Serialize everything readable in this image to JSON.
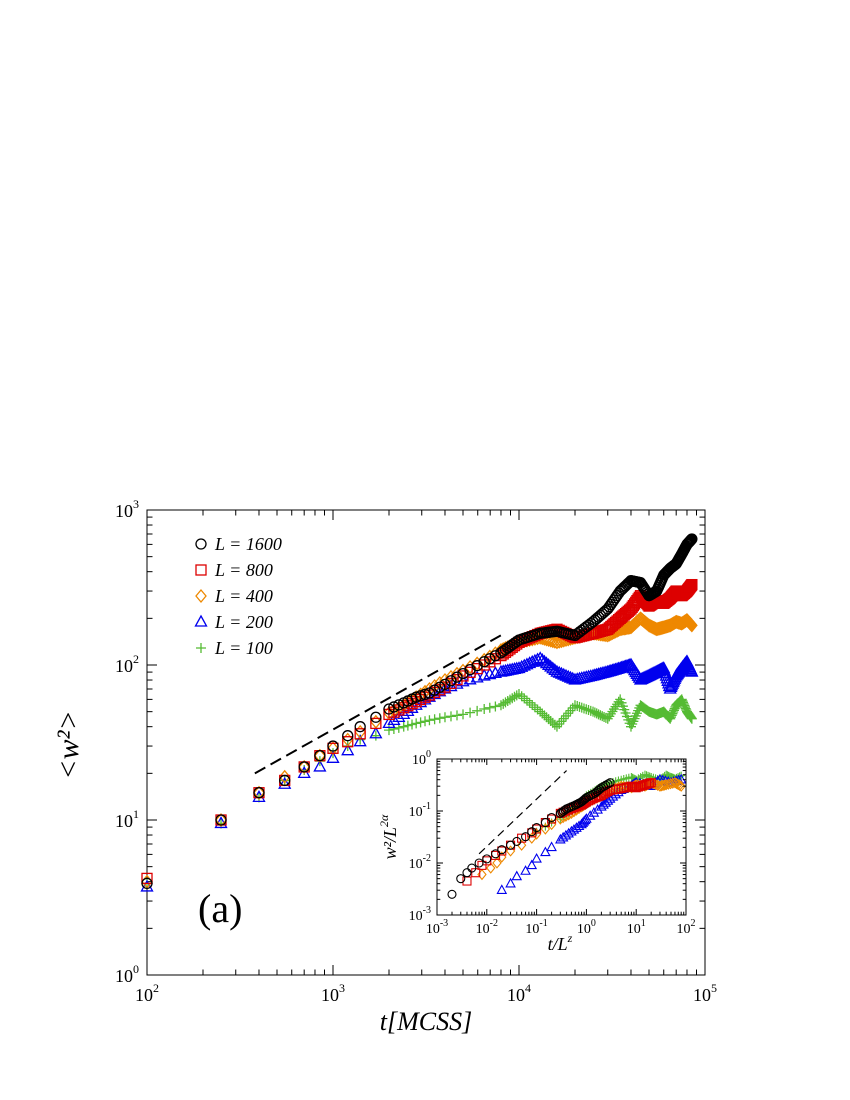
{
  "chart_data": [
    {
      "type": "scatter",
      "scale": "log-log",
      "xlabel": "t[MCSS]",
      "ylabel": "<w²>",
      "xlim": [
        100,
        100000
      ],
      "ylim": [
        1,
        1000
      ],
      "x_ticks": [
        {
          "base": "10",
          "exp": "2"
        },
        {
          "base": "10",
          "exp": "3"
        },
        {
          "base": "10",
          "exp": "4"
        },
        {
          "base": "10",
          "exp": "5"
        }
      ],
      "y_ticks": [
        {
          "base": "10",
          "exp": "0"
        },
        {
          "base": "10",
          "exp": "1"
        },
        {
          "base": "10",
          "exp": "2"
        },
        {
          "base": "10",
          "exp": "3"
        }
      ],
      "panel_label": "(a)",
      "legend_position": "top-left",
      "reference_line": {
        "style": "dashed",
        "x": [
          380,
          8200
        ],
        "y": [
          20,
          158
        ]
      },
      "series": [
        {
          "name": "L = 1600",
          "marker": "circle",
          "color": "#000000",
          "x": [
            100,
            250,
            400,
            550,
            700,
            850,
            1000,
            1200,
            1400,
            1700,
            2000,
            2400,
            2800,
            3300,
            4000,
            5000,
            6500,
            8000,
            10000,
            13000,
            16000,
            20000,
            25000,
            30000,
            35000,
            40000,
            45000,
            50000,
            55000,
            60000,
            65000,
            70000,
            75000,
            80000,
            85000
          ],
          "y": [
            3.9,
            10,
            15,
            18,
            22,
            26,
            30,
            35,
            40,
            46,
            52,
            57,
            62,
            66,
            75,
            88,
            105,
            120,
            145,
            160,
            165,
            155,
            190,
            230,
            300,
            350,
            340,
            280,
            300,
            380,
            420,
            450,
            520,
            600,
            650
          ]
        },
        {
          "name": "L = 800",
          "marker": "square",
          "color": "#dd0000",
          "x": [
            100,
            250,
            400,
            550,
            700,
            850,
            1000,
            1200,
            1400,
            1700,
            2000,
            2400,
            2800,
            3300,
            4000,
            5000,
            6500,
            8000,
            10000,
            13000,
            16000,
            20000,
            25000,
            30000,
            35000,
            40000,
            45000,
            50000,
            55000,
            60000,
            65000,
            70000,
            75000,
            80000,
            85000
          ],
          "y": [
            4.2,
            10,
            15,
            18,
            22,
            26,
            29,
            32,
            36,
            42,
            48,
            53,
            58,
            64,
            72,
            85,
            100,
            115,
            140,
            160,
            170,
            150,
            160,
            170,
            200,
            230,
            280,
            240,
            260,
            250,
            270,
            300,
            280,
            300,
            330
          ]
        },
        {
          "name": "L = 400",
          "marker": "diamond",
          "color": "#ee8800",
          "x": [
            100,
            250,
            400,
            550,
            700,
            850,
            1000,
            1200,
            1400,
            1700,
            2000,
            2400,
            2800,
            3300,
            4000,
            5000,
            6500,
            8000,
            10000,
            13000,
            16000,
            20000,
            25000,
            30000,
            35000,
            40000,
            45000,
            50000,
            55000,
            60000,
            65000,
            70000,
            75000,
            80000,
            85000
          ],
          "y": [
            4.0,
            10,
            15,
            19,
            22,
            26,
            29,
            33,
            37,
            43,
            49,
            55,
            62,
            70,
            80,
            92,
            108,
            125,
            140,
            150,
            140,
            150,
            160,
            155,
            170,
            175,
            200,
            180,
            170,
            175,
            180,
            190,
            185,
            195,
            180
          ]
        },
        {
          "name": "L = 200",
          "marker": "triangle",
          "color": "#0000ee",
          "x": [
            100,
            250,
            400,
            550,
            700,
            850,
            1000,
            1200,
            1400,
            1700,
            2000,
            2400,
            2800,
            3300,
            4000,
            5000,
            6500,
            8000,
            10000,
            13000,
            16000,
            20000,
            25000,
            30000,
            35000,
            40000,
            45000,
            50000,
            55000,
            60000,
            65000,
            70000,
            75000,
            80000,
            85000
          ],
          "y": [
            3.7,
            9.5,
            14,
            17,
            20,
            22,
            25,
            28,
            32,
            36,
            42,
            48,
            55,
            62,
            70,
            78,
            85,
            90,
            95,
            110,
            90,
            80,
            85,
            90,
            95,
            100,
            80,
            85,
            90,
            95,
            70,
            85,
            95,
            105,
            90
          ]
        },
        {
          "name": "L = 100",
          "marker": "plus",
          "color": "#55bb33",
          "x": [
            100,
            250,
            400,
            550,
            700,
            850,
            1000,
            1200,
            1400,
            1700,
            2000,
            2400,
            2800,
            3300,
            4000,
            5000,
            6500,
            8000,
            10000,
            13000,
            16000,
            20000,
            25000,
            30000,
            35000,
            40000,
            45000,
            50000,
            55000,
            60000,
            65000,
            70000,
            75000,
            80000,
            85000
          ],
          "y": [
            3.9,
            9.5,
            14,
            18,
            21,
            24,
            27,
            30,
            33,
            35,
            38,
            40,
            42,
            44,
            46,
            48,
            52,
            55,
            65,
            50,
            40,
            55,
            50,
            45,
            60,
            40,
            55,
            50,
            48,
            50,
            45,
            55,
            60,
            50,
            45
          ]
        }
      ]
    },
    {
      "type": "scatter",
      "scale": "log-log",
      "role": "inset",
      "xlabel": "t/L",
      "xlabel_exponent": "z",
      "ylabel": "w²/L",
      "ylabel_exponent": "2α",
      "xlim": [
        0.001,
        100
      ],
      "ylim": [
        0.001,
        1
      ],
      "x_ticks": [
        {
          "base": "10",
          "exp": "-3"
        },
        {
          "base": "10",
          "exp": "-2"
        },
        {
          "base": "10",
          "exp": "-1"
        },
        {
          "base": "10",
          "exp": "0"
        },
        {
          "base": "10",
          "exp": "1"
        },
        {
          "base": "10",
          "exp": "2"
        }
      ],
      "y_ticks": [
        {
          "base": "10",
          "exp": "-3"
        },
        {
          "base": "10",
          "exp": "-2"
        },
        {
          "base": "10",
          "exp": "-1"
        },
        {
          "base": "10",
          "exp": "0"
        }
      ],
      "reference_line": {
        "style": "dashed",
        "x": [
          0.007,
          0.4
        ],
        "y": [
          0.015,
          0.6
        ]
      },
      "series": [
        {
          "name": "L = 1600",
          "marker": "circle",
          "color": "#000000",
          "x": [
            0.002,
            0.003,
            0.004,
            0.005,
            0.007,
            0.01,
            0.015,
            0.02,
            0.03,
            0.04,
            0.06,
            0.08,
            0.1,
            0.15,
            0.2,
            0.3,
            0.4,
            0.6,
            0.8,
            1,
            1.5,
            2,
            3
          ],
          "y": [
            0.0025,
            0.005,
            0.0065,
            0.008,
            0.01,
            0.012,
            0.015,
            0.018,
            0.022,
            0.026,
            0.032,
            0.04,
            0.048,
            0.06,
            0.075,
            0.09,
            0.11,
            0.13,
            0.15,
            0.18,
            0.22,
            0.28,
            0.35
          ]
        },
        {
          "name": "L = 800",
          "marker": "square",
          "color": "#dd0000",
          "x": [
            0.004,
            0.006,
            0.008,
            0.01,
            0.015,
            0.02,
            0.03,
            0.05,
            0.08,
            0.1,
            0.15,
            0.2,
            0.3,
            0.5,
            0.8,
            1,
            1.5,
            2,
            3,
            5,
            8,
            10,
            15,
            20
          ],
          "y": [
            0.0045,
            0.0065,
            0.009,
            0.011,
            0.014,
            0.017,
            0.022,
            0.03,
            0.038,
            0.045,
            0.06,
            0.07,
            0.09,
            0.11,
            0.13,
            0.15,
            0.18,
            0.2,
            0.25,
            0.27,
            0.3,
            0.28,
            0.32,
            0.35
          ]
        },
        {
          "name": "L = 400",
          "marker": "diamond",
          "color": "#ee8800",
          "x": [
            0.008,
            0.012,
            0.016,
            0.02,
            0.03,
            0.05,
            0.08,
            0.1,
            0.15,
            0.2,
            0.3,
            0.5,
            0.8,
            1,
            2,
            3,
            5,
            8,
            10,
            15,
            20,
            30,
            40,
            60,
            80
          ],
          "y": [
            0.006,
            0.008,
            0.01,
            0.013,
            0.017,
            0.022,
            0.03,
            0.036,
            0.045,
            0.055,
            0.07,
            0.09,
            0.12,
            0.14,
            0.2,
            0.25,
            0.3,
            0.28,
            0.32,
            0.3,
            0.35,
            0.3,
            0.32,
            0.35,
            0.3
          ]
        },
        {
          "name": "L = 200",
          "marker": "triangle",
          "color": "#0000ee",
          "x": [
            0.02,
            0.03,
            0.04,
            0.06,
            0.08,
            0.1,
            0.15,
            0.2,
            0.3,
            0.5,
            0.8,
            1,
            2,
            3,
            5,
            8,
            10,
            20,
            30,
            50,
            80
          ],
          "y": [
            0.003,
            0.004,
            0.0055,
            0.007,
            0.009,
            0.012,
            0.016,
            0.02,
            0.028,
            0.04,
            0.055,
            0.07,
            0.12,
            0.17,
            0.25,
            0.3,
            0.35,
            0.3,
            0.4,
            0.35,
            0.4
          ]
        },
        {
          "name": "L = 100",
          "marker": "plus",
          "color": "#55bb33",
          "x": [
            0.1,
            0.15,
            0.2,
            0.3,
            0.5,
            0.8,
            1,
            1.5,
            2,
            3,
            5,
            8,
            10,
            15,
            20,
            30,
            40,
            50,
            60,
            80
          ],
          "y": [
            0.04,
            0.05,
            0.06,
            0.07,
            0.1,
            0.15,
            0.2,
            0.25,
            0.3,
            0.35,
            0.4,
            0.45,
            0.4,
            0.5,
            0.45,
            0.4,
            0.5,
            0.45,
            0.42,
            0.48
          ]
        }
      ]
    }
  ]
}
